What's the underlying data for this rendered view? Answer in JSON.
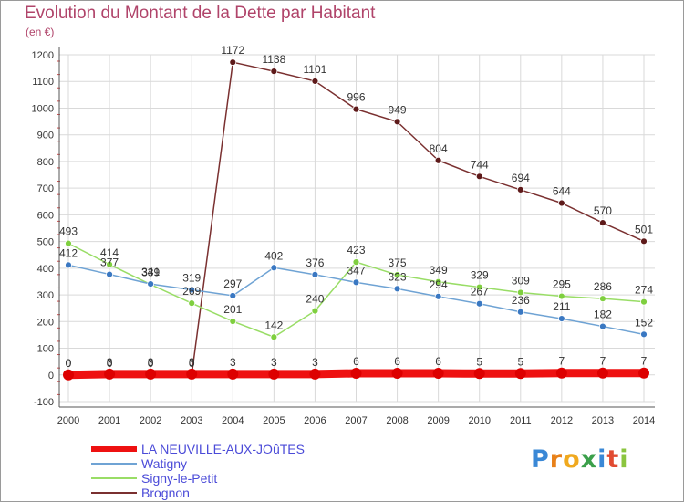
{
  "header": {
    "title": "Evolution du Montant de la Dette par Habitant",
    "subtitle": "(en €)"
  },
  "brand": {
    "letters": [
      "P",
      "r",
      "o",
      "x",
      "i",
      "t",
      "i"
    ]
  },
  "colors": {
    "axis": "#555555",
    "grid": "#d9d9d9",
    "label": "#333333",
    "dash": "#d04a4a"
  },
  "chart_data": {
    "type": "line",
    "title": "Evolution du Montant de la Dette par Habitant",
    "ylabel": "(en €)",
    "xlabel": "",
    "ylim": [
      -100,
      1200
    ],
    "yticks": [
      -100,
      0,
      100,
      200,
      300,
      400,
      500,
      600,
      700,
      800,
      900,
      1000,
      1100,
      1200
    ],
    "categories": [
      "2000",
      "2001",
      "2002",
      "2003",
      "2004",
      "2005",
      "2006",
      "2007",
      "2008",
      "2009",
      "2010",
      "2011",
      "2012",
      "2013",
      "2014"
    ],
    "grid": true,
    "legend_position": "bottom-left",
    "series": [
      {
        "name": "LA NEUVILLE-AUX-JOûTES",
        "color": "#ee1111",
        "marker": "#dd0000",
        "thick": true,
        "values": [
          0,
          3,
          3,
          3,
          3,
          3,
          3,
          6,
          6,
          6,
          5,
          5,
          7,
          7,
          7
        ],
        "labels": [
          "0",
          "3",
          "3",
          "3",
          "3",
          "3",
          "3",
          "6",
          "6",
          "6",
          "5",
          "5",
          "7",
          "7",
          "7"
        ]
      },
      {
        "name": "Watigny",
        "color": "#6fa3d4",
        "marker": "#3a78c2",
        "thick": false,
        "values": [
          412,
          377,
          341,
          319,
          297,
          402,
          376,
          347,
          323,
          294,
          267,
          236,
          211,
          182,
          152
        ],
        "labels": [
          "412",
          "377",
          "341",
          "319",
          "297",
          "402",
          "376",
          "347",
          "323",
          "294",
          "267",
          "236",
          "211",
          "182",
          "152"
        ]
      },
      {
        "name": "Signy-le-Petit",
        "color": "#99dd66",
        "marker": "#7fcf3f",
        "thick": false,
        "values": [
          493,
          414,
          339,
          269,
          201,
          142,
          240,
          423,
          375,
          349,
          329,
          309,
          295,
          286,
          274
        ],
        "labels": [
          "493",
          "414",
          "339",
          "269",
          "201",
          "142",
          "240",
          "423",
          "375",
          "349",
          "329",
          "309",
          "295",
          "286",
          "274"
        ]
      },
      {
        "name": "Brognon",
        "color": "#7a3030",
        "marker": "#5e1a1a",
        "thick": false,
        "values": [
          0,
          0,
          0,
          0,
          1172,
          1138,
          1101,
          996,
          949,
          804,
          744,
          694,
          644,
          570,
          501
        ],
        "labels": [
          "0",
          "0",
          "0",
          "0",
          "1172",
          "1138",
          "1101",
          "996",
          "949",
          "804",
          "744",
          "694",
          "644",
          "570",
          "501"
        ]
      }
    ]
  }
}
